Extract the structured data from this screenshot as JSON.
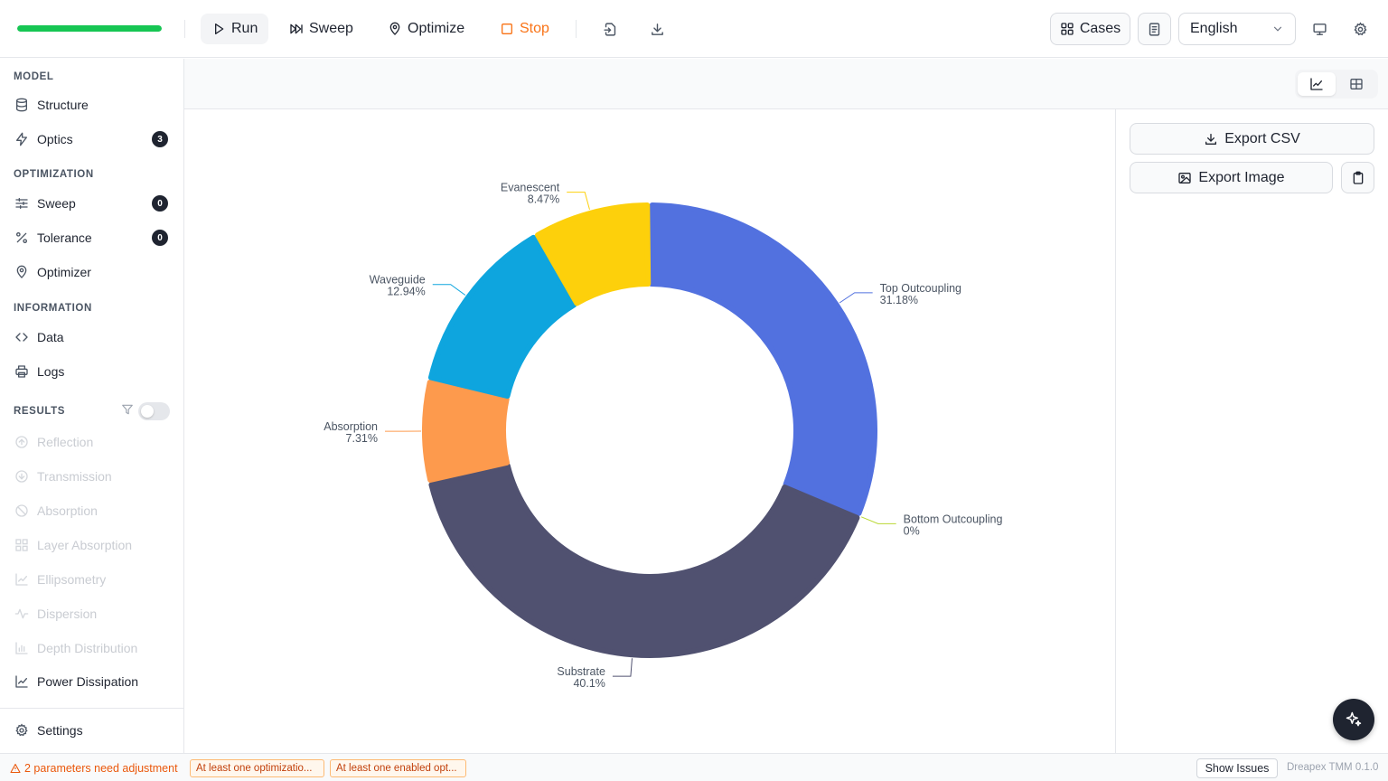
{
  "toolbar": {
    "progress": 1.0,
    "run_label": "Run",
    "sweep_label": "Sweep",
    "optimize_label": "Optimize",
    "stop_label": "Stop",
    "cases_label": "Cases",
    "language": "English"
  },
  "sidebar": {
    "model_title": "MODEL",
    "structure_label": "Structure",
    "optics_label": "Optics",
    "optics_badge": "3",
    "optimization_title": "OPTIMIZATION",
    "sweep_label": "Sweep",
    "sweep_badge": "0",
    "tolerance_label": "Tolerance",
    "tolerance_badge": "0",
    "optimizer_label": "Optimizer",
    "information_title": "INFORMATION",
    "data_label": "Data",
    "logs_label": "Logs",
    "results_title": "RESULTS",
    "results": [
      {
        "label": "Reflection",
        "icon": "arrow-up-circle-icon"
      },
      {
        "label": "Transmission",
        "icon": "arrow-down-circle-icon"
      },
      {
        "label": "Absorption",
        "icon": "ban-icon"
      },
      {
        "label": "Layer Absorption",
        "icon": "grid-icon"
      },
      {
        "label": "Ellipsometry",
        "icon": "chart-line-icon"
      },
      {
        "label": "Dispersion",
        "icon": "activity-icon"
      },
      {
        "label": "Depth Distribution",
        "icon": "bar-chart-icon"
      },
      {
        "label": "Power Dissipation",
        "icon": "chart-line-icon"
      }
    ],
    "settings_label": "Settings"
  },
  "right_panel": {
    "export_csv_label": "Export CSV",
    "export_image_label": "Export Image"
  },
  "chart_data": {
    "type": "pie",
    "donut": true,
    "slices": [
      {
        "label": "Top Outcoupling",
        "pct_label": "31.18%",
        "value": 31.18,
        "color": "#5271df"
      },
      {
        "label": "Bottom Outcoupling",
        "pct_label": "0%",
        "value": 0,
        "color": "#b9d833"
      },
      {
        "label": "Substrate",
        "pct_label": "40.1%",
        "value": 40.1,
        "color": "#505170"
      },
      {
        "label": "Absorption",
        "pct_label": "7.31%",
        "value": 7.31,
        "color": "#fd9a4d"
      },
      {
        "label": "Waveguide",
        "pct_label": "12.94%",
        "value": 12.94,
        "color": "#0ea5de"
      },
      {
        "label": "Evanescent",
        "pct_label": "8.47%",
        "value": 8.47,
        "color": "#fdd00b"
      }
    ]
  },
  "status": {
    "warning": "2 parameters need adjustment",
    "chip1": "At least one optimizatio...",
    "chip2": "At least one enabled opt...",
    "show_issues": "Show Issues",
    "version": "Dreapex TMM 0.1.0"
  }
}
